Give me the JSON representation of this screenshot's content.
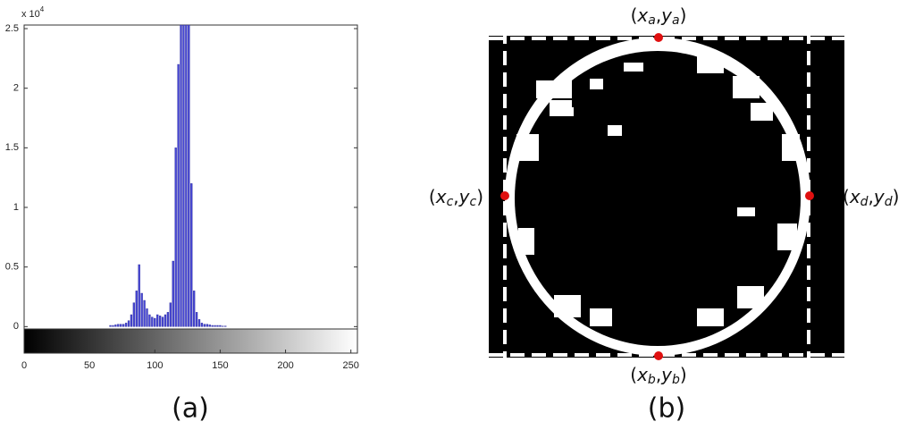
{
  "chart_data": {
    "type": "bar",
    "y_scale_label": {
      "base": "x 10",
      "exponent": "4"
    },
    "x": [
      66,
      68,
      70,
      72,
      74,
      76,
      78,
      80,
      82,
      84,
      86,
      88,
      90,
      92,
      94,
      96,
      98,
      100,
      102,
      104,
      106,
      108,
      110,
      112,
      114,
      116,
      118,
      120,
      122,
      124,
      126,
      128,
      130,
      132,
      134,
      136,
      138,
      140,
      142,
      144,
      146,
      148,
      150,
      152,
      154
    ],
    "values": [
      0.01,
      0.01,
      0.015,
      0.02,
      0.02,
      0.02,
      0.03,
      0.05,
      0.1,
      0.2,
      0.3,
      0.52,
      0.28,
      0.22,
      0.15,
      0.1,
      0.08,
      0.07,
      0.1,
      0.09,
      0.08,
      0.1,
      0.12,
      0.2,
      0.55,
      1.5,
      2.2,
      2.53,
      2.53,
      2.53,
      2.53,
      1.2,
      0.3,
      0.12,
      0.06,
      0.03,
      0.02,
      0.02,
      0.015,
      0.01,
      0.01,
      0.01,
      0.01,
      0.005,
      0.005
    ],
    "color": "#4646d6",
    "xlim": [
      0,
      255
    ],
    "ylim": [
      -0.02,
      2.53
    ],
    "xticks": [
      0,
      50,
      100,
      150,
      200,
      250
    ],
    "yticks": [
      0,
      0.5,
      1,
      1.5,
      2,
      2.5
    ],
    "panel_label": "(a)"
  },
  "diagram": {
    "panel_label": "(b)",
    "points": [
      {
        "name": "top",
        "label_parts": [
          "(",
          "x",
          "a",
          ",",
          "y",
          "a",
          ")"
        ]
      },
      {
        "name": "bottom",
        "label_parts": [
          "(",
          "x",
          "b",
          ",",
          "y",
          "b",
          ")"
        ]
      },
      {
        "name": "left",
        "label_parts": [
          "(",
          "x",
          "c",
          ",",
          "y",
          "c",
          ")"
        ]
      },
      {
        "name": "right",
        "label_parts": [
          "(",
          "x",
          "d",
          ",",
          "y",
          "d",
          ")"
        ]
      }
    ]
  }
}
